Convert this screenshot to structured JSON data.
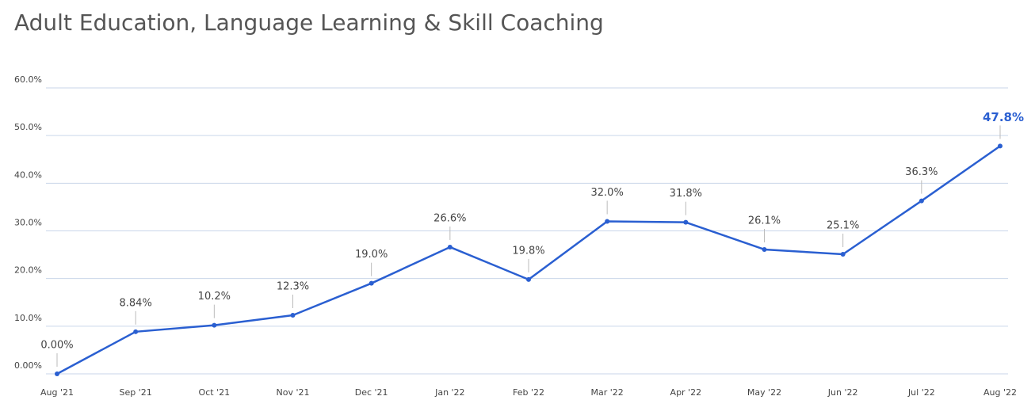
{
  "chart_data": {
    "type": "line",
    "title": "Adult Education, Language Learning & Skill Coaching",
    "categories": [
      "Aug '21",
      "Sep '21",
      "Oct '21",
      "Nov '21",
      "Dec '21",
      "Jan '22",
      "Feb '22",
      "Mar '22",
      "Apr '22",
      "May '22",
      "Jun '22",
      "Jul '22",
      "Aug '22"
    ],
    "series": [
      {
        "color": "#2a5fd1",
        "values": [
          0,
          8.84,
          10.2,
          12.3,
          19.0,
          26.6,
          19.8,
          32.0,
          31.8,
          26.1,
          25.1,
          36.3,
          47.8
        ],
        "value_labels": [
          "0.00%",
          "8.84%",
          "10.2%",
          "12.3%",
          "19.0%",
          "26.6%",
          "19.8%",
          "32.0%",
          "31.8%",
          "26.1%",
          "25.1%",
          "36.3%",
          "47.8%"
        ]
      }
    ],
    "ylim": [
      0,
      60
    ],
    "yticks": [
      {
        "value": 0,
        "label": "0.00%"
      },
      {
        "value": 10,
        "label": "10.0%"
      },
      {
        "value": 20,
        "label": "20.0%"
      },
      {
        "value": 30,
        "label": "30.0%"
      },
      {
        "value": 40,
        "label": "40.0%"
      },
      {
        "value": 50,
        "label": "50.0%"
      },
      {
        "value": 60,
        "label": "60.0%"
      }
    ],
    "grid": true
  }
}
